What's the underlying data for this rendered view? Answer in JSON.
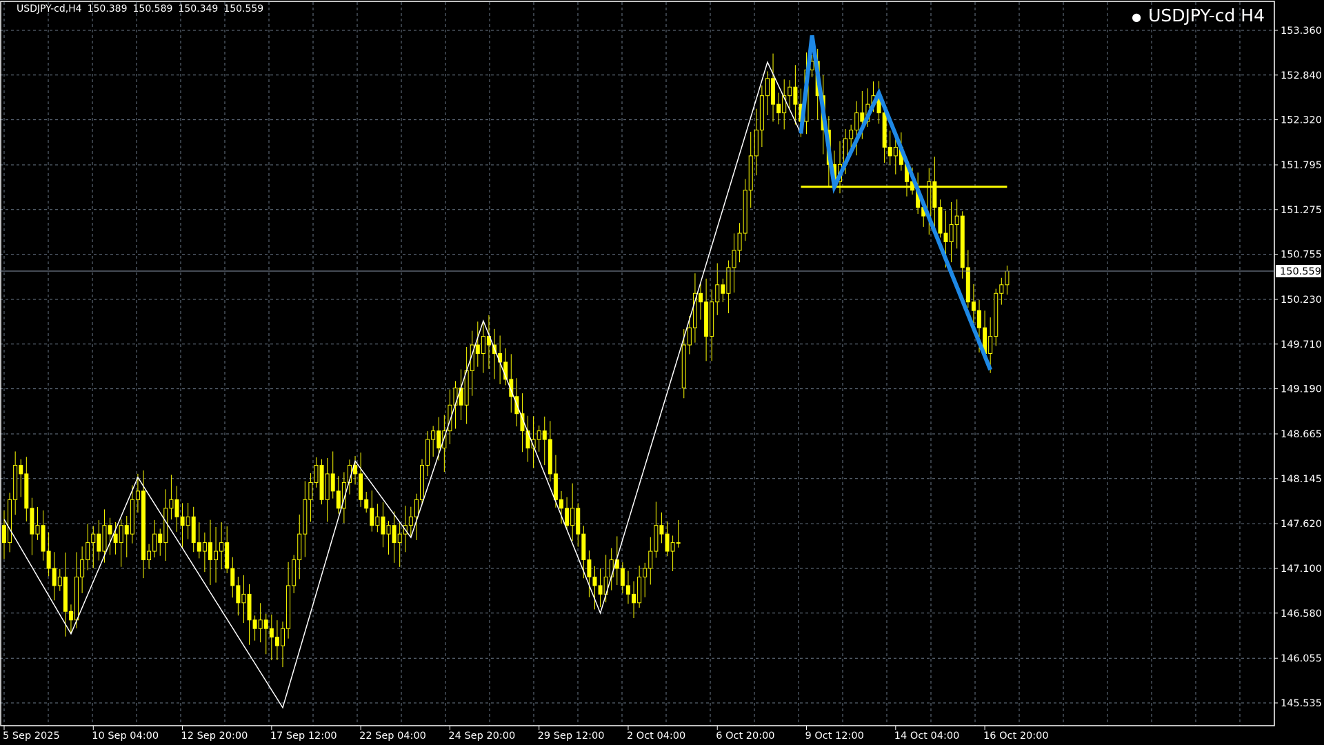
{
  "header": {
    "symbol_timeframe": "USDJPY-cd,H4",
    "open": "150.389",
    "high": "150.589",
    "low": "150.349",
    "close": "150.559"
  },
  "chart_title": "USDJPY-cd H4",
  "colors": {
    "background": "#000000",
    "candle": "#ffff00",
    "grid": "#6c7a8a",
    "zigzag": "#ffffff",
    "pattern_line": "#1e88e5",
    "level_line": "#ffff00",
    "bid_line": "#8a96a8"
  },
  "chart_data": {
    "type": "candlestick",
    "price_axis": {
      "ticks": [
        "153.360",
        "152.840",
        "152.320",
        "151.795",
        "151.275",
        "150.755",
        "150.230",
        "149.710",
        "149.190",
        "148.665",
        "148.145",
        "147.620",
        "147.100",
        "146.580",
        "146.055",
        "145.535"
      ],
      "range": [
        145.535,
        153.36
      ]
    },
    "time_axis": {
      "ticks": [
        "5 Sep 2025",
        "10 Sep 04:00",
        "12 Sep 20:00",
        "17 Sep 12:00",
        "22 Sep 04:00",
        "24 Sep 20:00",
        "29 Sep 12:00",
        "2 Oct 04:00",
        "6 Oct 20:00",
        "9 Oct 12:00",
        "14 Oct 04:00",
        "16 Oct 20:00"
      ]
    },
    "grid": true,
    "current_price": "150.559",
    "closes": [
      147.4,
      147.9,
      148.3,
      148.2,
      147.8,
      147.5,
      147.6,
      147.3,
      147.1,
      146.9,
      147.0,
      146.6,
      146.5,
      147.0,
      147.2,
      147.4,
      147.5,
      147.3,
      147.6,
      147.5,
      147.4,
      147.6,
      147.5,
      147.9,
      148.0,
      147.2,
      147.3,
      147.5,
      147.4,
      147.8,
      147.9,
      147.7,
      147.6,
      147.7,
      147.4,
      147.3,
      147.4,
      147.2,
      147.3,
      147.4,
      147.1,
      146.9,
      146.7,
      146.8,
      146.5,
      146.4,
      146.5,
      146.4,
      146.3,
      146.2,
      146.4,
      146.9,
      147.2,
      147.5,
      147.9,
      148.1,
      148.3,
      147.9,
      148.2,
      148.0,
      147.8,
      148.1,
      148.3,
      148.2,
      147.9,
      147.8,
      147.6,
      147.7,
      147.5,
      147.6,
      147.4,
      147.5,
      147.6,
      147.7,
      147.9,
      148.3,
      148.6,
      148.7,
      148.5,
      148.7,
      149.0,
      149.2,
      149.0,
      149.4,
      149.7,
      149.6,
      149.8,
      149.7,
      149.6,
      149.5,
      149.3,
      149.1,
      148.9,
      148.7,
      148.5,
      148.6,
      148.7,
      148.6,
      148.2,
      147.9,
      147.8,
      147.6,
      147.8,
      147.5,
      147.2,
      147.0,
      146.9,
      146.8,
      147.0,
      147.2,
      147.1,
      146.9,
      146.8,
      146.7,
      147.0,
      147.1,
      147.3,
      147.6,
      147.5,
      147.3,
      147.4,
      147.4,
      149.7,
      149.9,
      150.3,
      150.2,
      149.8,
      150.2,
      150.4,
      150.3,
      150.6,
      150.8,
      151.0,
      151.5,
      151.9,
      152.2,
      152.6,
      152.8,
      152.5,
      152.4,
      152.6,
      152.7,
      152.5,
      152.3,
      152.9,
      153.0,
      152.6,
      152.2,
      151.8,
      151.6,
      151.8,
      152.1,
      152.2,
      152.4,
      152.3,
      152.5,
      152.6,
      152.4,
      152.0,
      151.9,
      152.0,
      151.8,
      151.6,
      151.5,
      151.3,
      151.2,
      151.6,
      151.3,
      151.0,
      150.9,
      151.1,
      151.2,
      150.6,
      150.2,
      150.1,
      149.9,
      149.6,
      149.8,
      150.3,
      150.4,
      150.559
    ],
    "zigzag": [
      [
        0,
        147.67
      ],
      [
        12,
        146.34
      ],
      [
        24,
        148.16
      ],
      [
        50,
        145.48
      ],
      [
        63,
        148.35
      ],
      [
        73,
        147.46
      ],
      [
        86,
        149.98
      ],
      [
        107,
        146.58
      ],
      [
        137,
        152.99
      ],
      [
        143,
        152.16
      ]
    ],
    "pattern_line": [
      [
        143,
        152.16
      ],
      [
        145,
        153.3
      ],
      [
        149,
        151.54
      ],
      [
        157,
        152.63
      ],
      [
        177,
        149.41
      ]
    ],
    "level_line": {
      "price": 151.54,
      "from": 143,
      "to": 180
    }
  }
}
